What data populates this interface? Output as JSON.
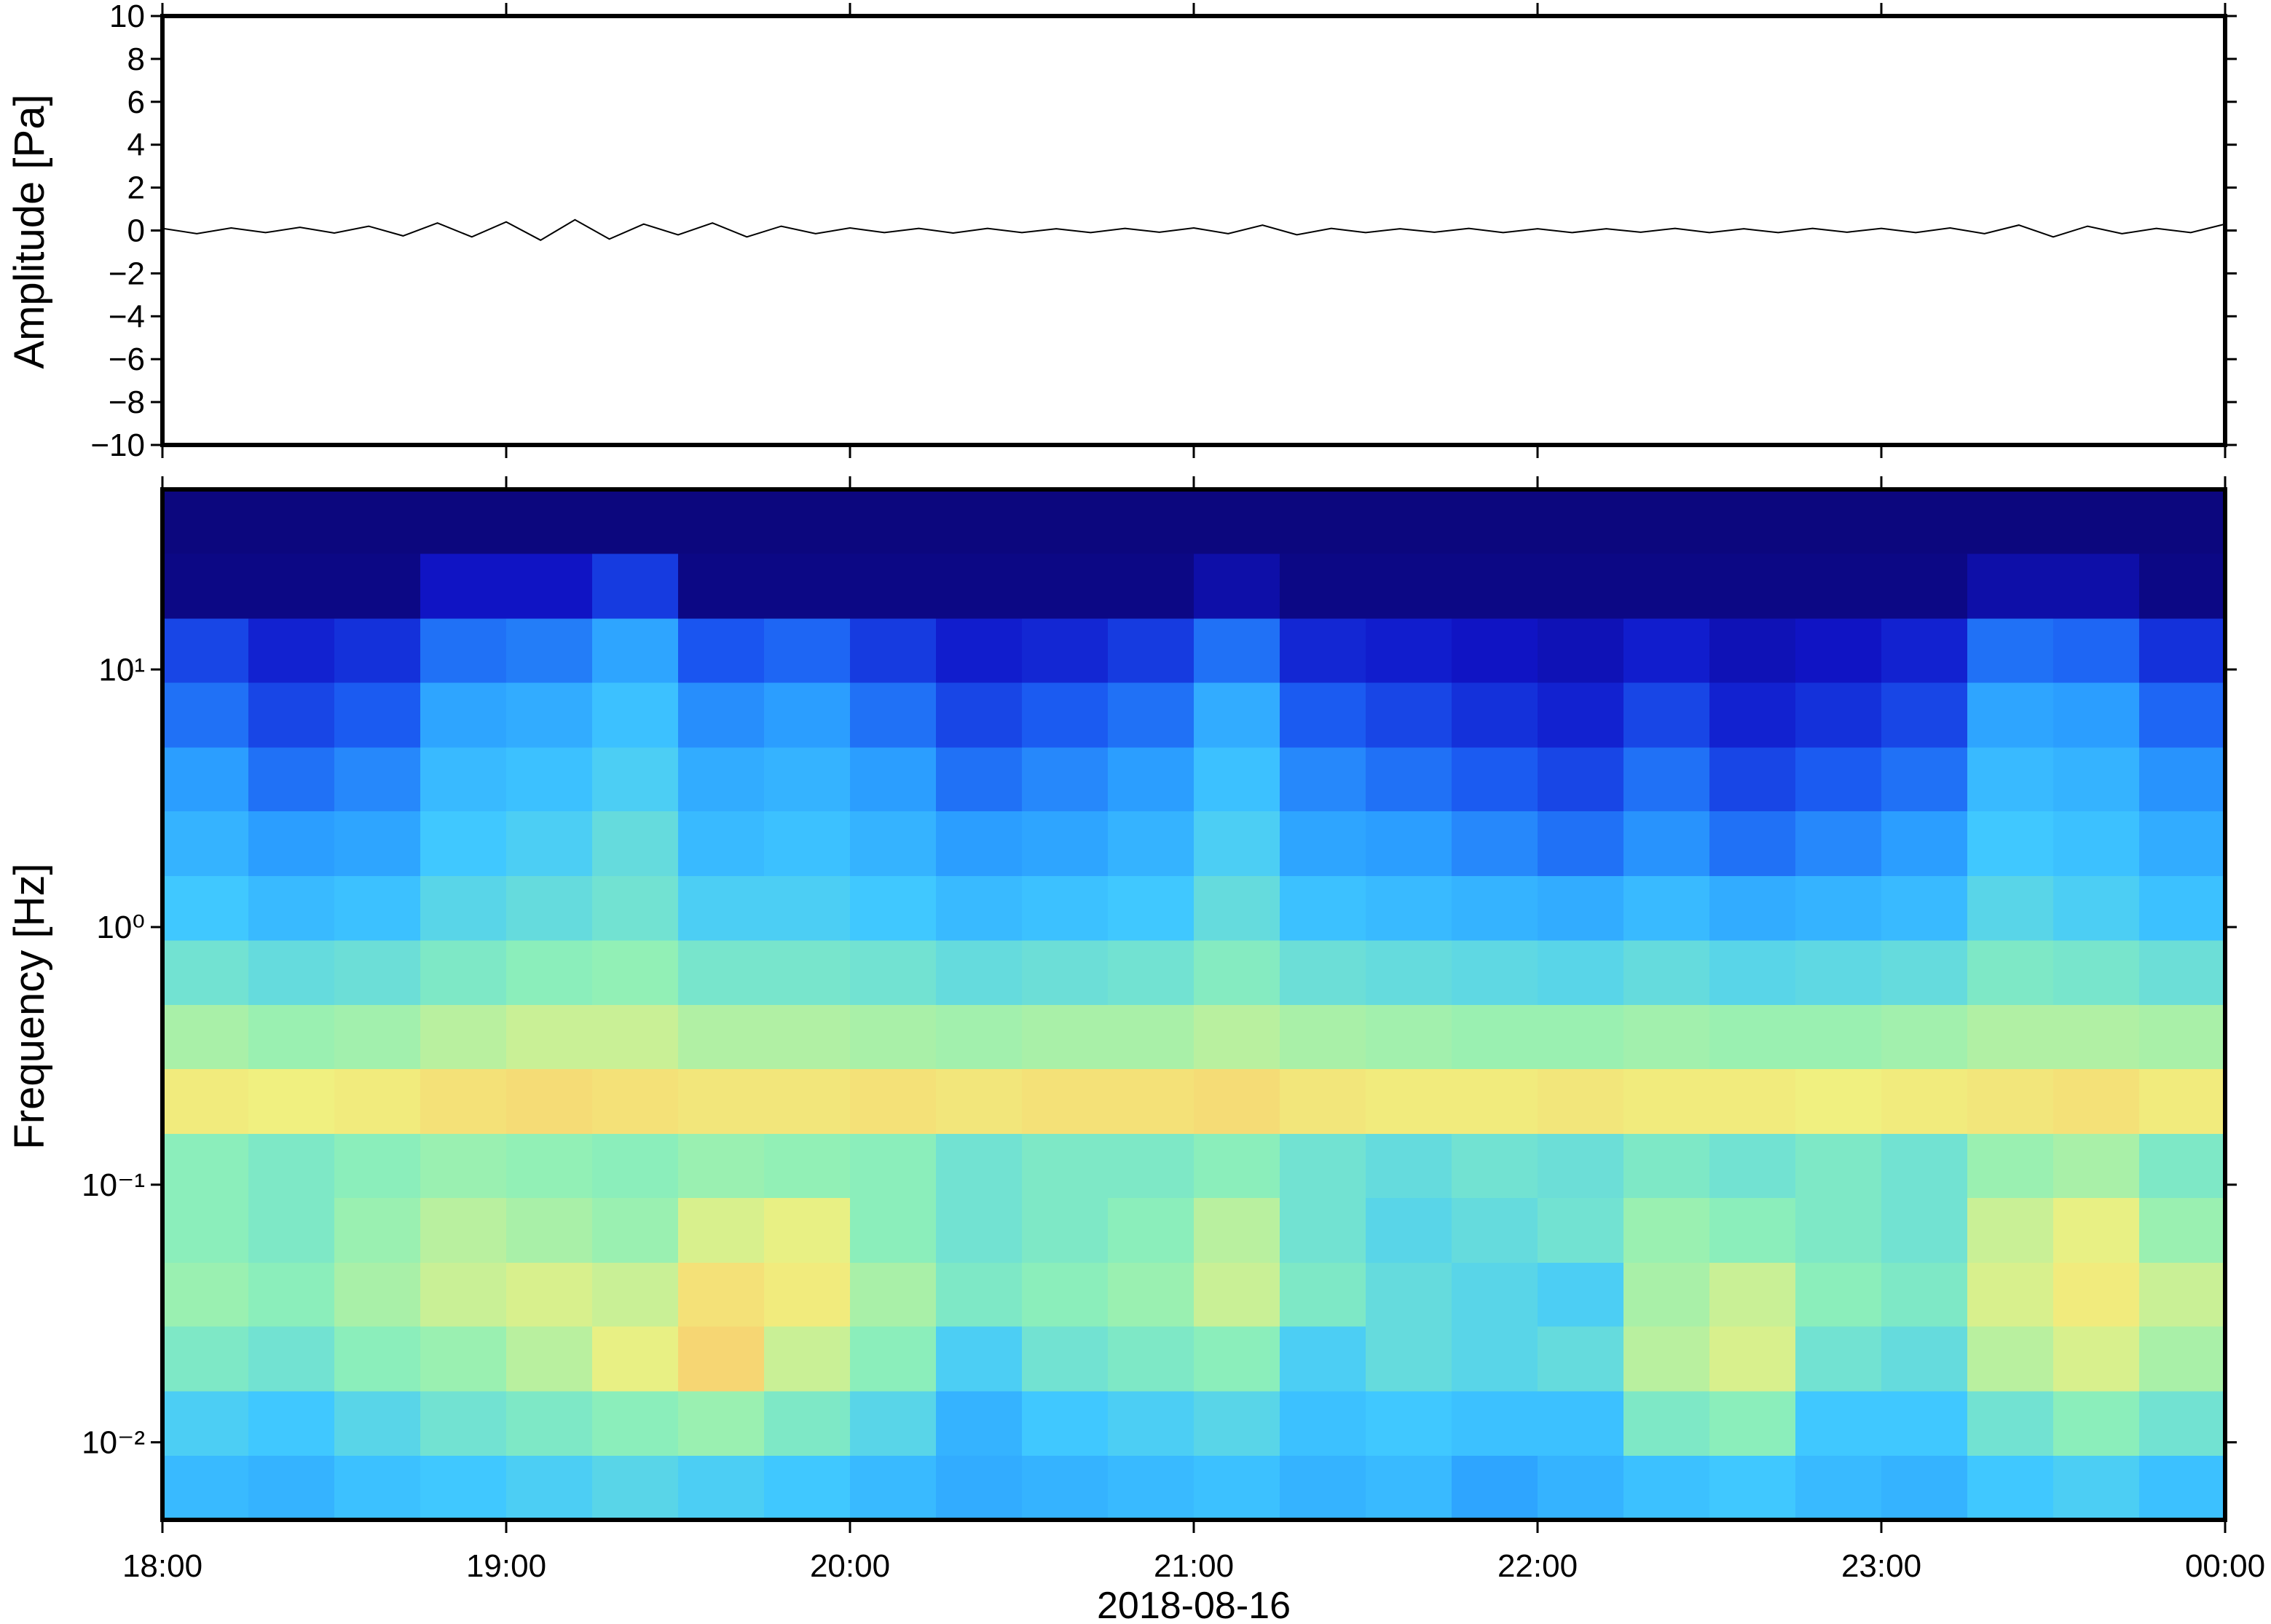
{
  "chart_data": [
    {
      "type": "line",
      "ylabel": "Amplitude [Pa]",
      "color": "#000000",
      "xlim": [
        18,
        24
      ],
      "xticks": [
        18,
        19,
        20,
        21,
        22,
        23,
        24
      ],
      "ylim": [
        -10,
        10
      ],
      "yticks": [
        {
          "value": -10,
          "label": "−10"
        },
        {
          "value": -8,
          "label": "−8"
        },
        {
          "value": -6,
          "label": "−6"
        },
        {
          "value": -4,
          "label": "−4"
        },
        {
          "value": -2,
          "label": "−2"
        },
        0,
        2,
        4,
        6,
        8,
        10
      ],
      "x": [
        18,
        18.1,
        18.2,
        18.3,
        18.4,
        18.5,
        18.6,
        18.7,
        18.8,
        18.9,
        19,
        19.1,
        19.2,
        19.3,
        19.4,
        19.5,
        19.6,
        19.7,
        19.8,
        19.9,
        20,
        20.1,
        20.2,
        20.3,
        20.4,
        20.5,
        20.6,
        20.7,
        20.8,
        20.9,
        21,
        21.1,
        21.2,
        21.3,
        21.4,
        21.5,
        21.6,
        21.7,
        21.8,
        21.9,
        22,
        22.1,
        22.2,
        22.3,
        22.4,
        22.5,
        22.6,
        22.7,
        22.8,
        22.9,
        23,
        23.1,
        23.2,
        23.3,
        23.4,
        23.5,
        23.6,
        23.7,
        23.8,
        23.9,
        24
      ],
      "values": [
        0.1,
        -0.15,
        0.12,
        -0.1,
        0.15,
        -0.12,
        0.2,
        -0.25,
        0.35,
        -0.3,
        0.4,
        -0.45,
        0.5,
        -0.4,
        0.3,
        -0.2,
        0.35,
        -0.3,
        0.2,
        -0.15,
        0.12,
        -0.1,
        0.1,
        -0.12,
        0.1,
        -0.1,
        0.08,
        -0.1,
        0.1,
        -0.08,
        0.12,
        -0.15,
        0.25,
        -0.2,
        0.1,
        -0.1,
        0.08,
        -0.08,
        0.1,
        -0.1,
        0.08,
        -0.1,
        0.08,
        -0.08,
        0.1,
        -0.1,
        0.08,
        -0.1,
        0.1,
        -0.08,
        0.1,
        -0.1,
        0.12,
        -0.15,
        0.25,
        -0.3,
        0.2,
        -0.15,
        0.1,
        -0.1,
        0.3
      ]
    },
    {
      "type": "heatmap",
      "ylabel": "Frequency [Hz]",
      "xlabel": "2018-08-16",
      "ylog": true,
      "xlim": [
        18,
        24
      ],
      "xticks": [
        {
          "value": 18,
          "label": "18:00"
        },
        {
          "value": 19,
          "label": "19:00"
        },
        {
          "value": 20,
          "label": "20:00"
        },
        {
          "value": 21,
          "label": "21:00"
        },
        {
          "value": 22,
          "label": "22:00"
        },
        {
          "value": 23,
          "label": "23:00"
        },
        {
          "value": 24,
          "label": "00:00"
        }
      ],
      "ylim": [
        0.005,
        50
      ],
      "yticks": [
        {
          "value": 0.01,
          "label": "10⁻²"
        },
        {
          "value": 0.1,
          "label": "10⁻¹"
        },
        {
          "value": 1,
          "label": "10⁰"
        },
        {
          "value": 10,
          "label": "10¹"
        }
      ],
      "zlim": [
        0,
        100
      ],
      "colorscale": [
        "#0b0470",
        "#1015c8",
        "#1a55f0",
        "#2a9cff",
        "#40c8ff",
        "#8ef0b8",
        "#f0f080",
        "#ffb060",
        "#ff7040"
      ],
      "xbins": [
        18,
        18.25,
        18.5,
        18.75,
        19,
        19.25,
        19.5,
        19.75,
        20,
        20.25,
        20.5,
        20.75,
        21,
        21.25,
        21.5,
        21.75,
        22,
        22.25,
        22.5,
        22.75,
        23,
        23.25,
        23.5,
        23.75,
        24
      ],
      "ybins": [
        0.005,
        0.0089,
        0.0158,
        0.0282,
        0.05,
        0.089,
        0.158,
        0.282,
        0.5,
        0.89,
        1.58,
        2.82,
        5,
        8.9,
        15.8,
        28.2,
        50
      ],
      "z": [
        [
          46,
          44,
          48,
          50,
          52,
          54,
          52,
          50,
          46,
          42,
          44,
          46,
          48,
          44,
          46,
          40,
          44,
          48,
          50,
          46,
          44,
          50,
          52,
          48
        ],
        [
          52,
          50,
          54,
          58,
          60,
          62,
          64,
          60,
          54,
          44,
          50,
          52,
          54,
          48,
          50,
          48,
          48,
          60,
          62,
          50,
          50,
          58,
          62,
          58
        ],
        [
          60,
          58,
          62,
          64,
          68,
          74,
          80,
          70,
          62,
          52,
          58,
          60,
          62,
          52,
          56,
          54,
          56,
          68,
          72,
          58,
          56,
          68,
          72,
          66
        ],
        [
          64,
          62,
          66,
          70,
          72,
          70,
          78,
          76,
          66,
          60,
          62,
          64,
          70,
          60,
          56,
          54,
          52,
          66,
          70,
          62,
          60,
          72,
          76,
          70
        ],
        [
          62,
          60,
          64,
          68,
          66,
          64,
          72,
          74,
          62,
          58,
          60,
          62,
          68,
          58,
          54,
          56,
          58,
          64,
          62,
          60,
          58,
          70,
          74,
          64
        ],
        [
          62,
          60,
          62,
          64,
          63,
          62,
          64,
          63,
          62,
          58,
          60,
          60,
          62,
          58,
          56,
          58,
          57,
          60,
          58,
          60,
          58,
          64,
          66,
          60
        ],
        [
          76,
          75,
          76,
          78,
          79,
          78,
          77,
          77,
          78,
          77,
          78,
          78,
          79,
          77,
          76,
          76,
          77,
          76,
          76,
          75,
          76,
          77,
          78,
          76
        ],
        [
          66,
          64,
          65,
          68,
          70,
          70,
          67,
          67,
          66,
          65,
          66,
          66,
          68,
          66,
          65,
          64,
          64,
          65,
          64,
          64,
          65,
          67,
          67,
          66
        ],
        [
          58,
          56,
          57,
          60,
          62,
          63,
          59,
          59,
          58,
          56,
          57,
          58,
          61,
          57,
          56,
          55,
          54,
          56,
          54,
          55,
          56,
          60,
          59,
          57
        ],
        [
          50,
          46,
          48,
          54,
          56,
          58,
          52,
          52,
          50,
          46,
          48,
          50,
          56,
          48,
          46,
          44,
          42,
          46,
          42,
          44,
          46,
          54,
          52,
          48
        ],
        [
          44,
          38,
          40,
          50,
          52,
          56,
          46,
          48,
          44,
          38,
          40,
          44,
          52,
          40,
          38,
          34,
          30,
          36,
          30,
          34,
          38,
          50,
          48,
          42
        ],
        [
          38,
          30,
          34,
          46,
          48,
          52,
          42,
          44,
          38,
          30,
          34,
          38,
          48,
          34,
          30,
          26,
          22,
          30,
          22,
          26,
          30,
          46,
          44,
          36
        ],
        [
          30,
          22,
          26,
          40,
          42,
          48,
          35,
          38,
          30,
          22,
          26,
          30,
          42,
          26,
          22,
          18,
          15,
          22,
          15,
          18,
          22,
          40,
          38,
          28
        ],
        [
          22,
          15,
          18,
          30,
          32,
          40,
          25,
          28,
          20,
          14,
          16,
          20,
          30,
          16,
          14,
          12,
          10,
          14,
          10,
          12,
          15,
          30,
          28,
          18
        ],
        [
          3,
          3,
          3,
          12,
          12,
          20,
          3,
          3,
          3,
          3,
          3,
          3,
          8,
          3,
          3,
          3,
          3,
          3,
          3,
          3,
          3,
          8,
          8,
          3
        ],
        [
          2,
          2,
          2,
          2,
          2,
          2,
          2,
          2,
          2,
          2,
          2,
          2,
          2,
          2,
          2,
          2,
          2,
          2,
          2,
          2,
          2,
          2,
          2,
          2
        ]
      ]
    }
  ]
}
